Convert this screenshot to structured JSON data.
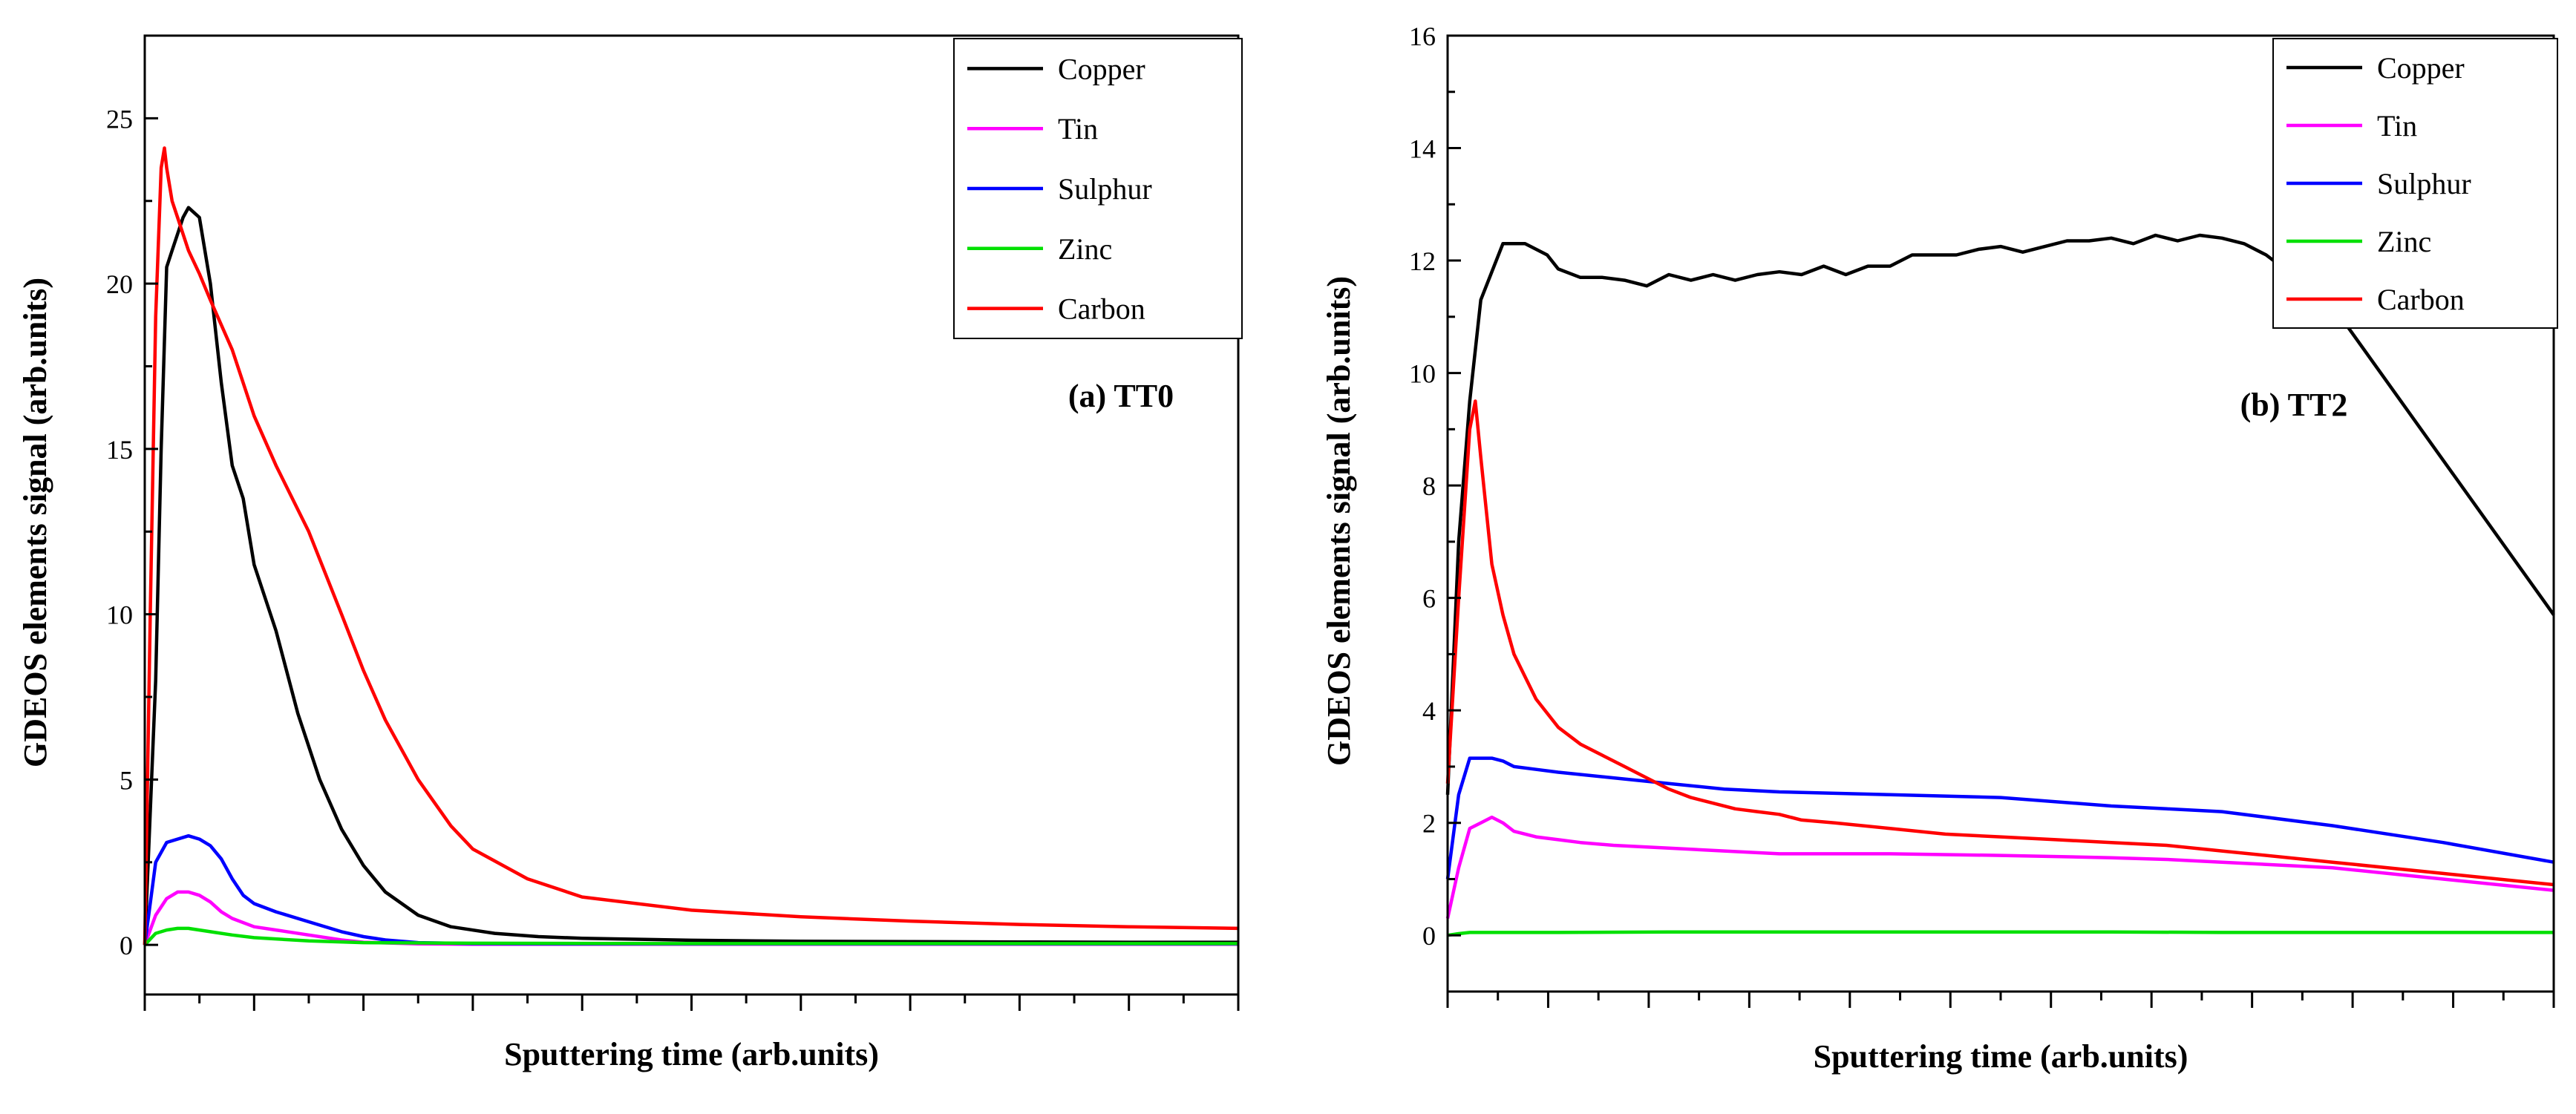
{
  "chart_data": [
    {
      "type": "line",
      "title": "",
      "panel_label": "(a) TT0",
      "xlabel": "Sputtering time (arb.units)",
      "ylabel": "GDEOS elements signal (arb.units)",
      "xlim": [
        0,
        100
      ],
      "ylim": [
        -1.5,
        27.5
      ],
      "yticks": [
        0,
        5,
        10,
        15,
        20,
        25
      ],
      "ytick_labels": [
        "0",
        "5",
        "10",
        "15",
        "20",
        "25"
      ],
      "xtick_count": 20,
      "grid": false,
      "legend_position": "top-right",
      "series": [
        {
          "name": "Copper",
          "color": "#000000",
          "x": [
            0,
            1,
            1.5,
            2,
            2.5,
            3,
            3.5,
            4,
            5,
            6,
            7,
            8,
            9,
            10,
            12,
            14,
            16,
            18,
            20,
            22,
            25,
            28,
            32,
            36,
            40,
            50,
            60,
            70,
            80,
            90,
            100
          ],
          "y": [
            0,
            8,
            15,
            20.5,
            21,
            21.5,
            22,
            22.3,
            22,
            20,
            17,
            14.5,
            13.5,
            11.5,
            9.5,
            7,
            5,
            3.5,
            2.4,
            1.6,
            0.9,
            0.55,
            0.35,
            0.25,
            0.2,
            0.14,
            0.11,
            0.1,
            0.09,
            0.08,
            0.08
          ]
        },
        {
          "name": "Tin",
          "color": "#ff00ff",
          "x": [
            0,
            1,
            2,
            3,
            4,
            5,
            6,
            7,
            8,
            10,
            12,
            15,
            18,
            20,
            25,
            30,
            40,
            60,
            100
          ],
          "y": [
            0,
            0.9,
            1.4,
            1.6,
            1.6,
            1.5,
            1.3,
            1.0,
            0.8,
            0.55,
            0.45,
            0.3,
            0.15,
            0.08,
            0.03,
            0.02,
            0.02,
            0.02,
            0.02
          ]
        },
        {
          "name": "Sulphur",
          "color": "#0000ff",
          "x": [
            0,
            1,
            2,
            3,
            4,
            5,
            6,
            7,
            8,
            9,
            10,
            12,
            15,
            18,
            20,
            22,
            25,
            30,
            40,
            60,
            100
          ],
          "y": [
            0,
            2.5,
            3.1,
            3.2,
            3.3,
            3.2,
            3.0,
            2.6,
            2.0,
            1.5,
            1.25,
            1.0,
            0.7,
            0.4,
            0.25,
            0.15,
            0.07,
            0.04,
            0.03,
            0.03,
            0.03
          ]
        },
        {
          "name": "Zinc",
          "color": "#00e000",
          "x": [
            0,
            1,
            2,
            3,
            4,
            5,
            6,
            8,
            10,
            15,
            20,
            30,
            50,
            100
          ],
          "y": [
            0,
            0.35,
            0.45,
            0.5,
            0.5,
            0.45,
            0.4,
            0.3,
            0.22,
            0.12,
            0.07,
            0.05,
            0.04,
            0.04
          ]
        },
        {
          "name": "Carbon",
          "color": "#ff0000",
          "x": [
            0,
            0.5,
            1,
            1.5,
            1.8,
            2,
            2.5,
            3,
            4,
            5,
            6,
            8,
            10,
            12,
            15,
            18,
            20,
            22,
            25,
            28,
            30,
            35,
            40,
            50,
            60,
            70,
            80,
            90,
            100
          ],
          "y": [
            0,
            10,
            19,
            23.5,
            24.1,
            23.5,
            22.5,
            22,
            21,
            20.3,
            19.5,
            18,
            16,
            14.5,
            12.5,
            10,
            8.3,
            6.8,
            5,
            3.6,
            2.9,
            2.0,
            1.45,
            1.05,
            0.85,
            0.72,
            0.62,
            0.55,
            0.5
          ]
        }
      ]
    },
    {
      "type": "line",
      "title": "",
      "panel_label": "(b) TT2",
      "xlabel": "Sputtering time (arb.units)",
      "ylabel": "GDEOS elements signal (arb.units)",
      "xlim": [
        0,
        100
      ],
      "ylim": [
        -1,
        16
      ],
      "yticks": [
        0,
        2,
        4,
        6,
        8,
        10,
        12,
        14,
        16
      ],
      "ytick_labels": [
        "0",
        "2",
        "4",
        "6",
        "8",
        "10",
        "12",
        "14",
        "16"
      ],
      "xtick_count": 22,
      "grid": false,
      "legend_position": "top-right",
      "series": [
        {
          "name": "Copper",
          "color": "#000000",
          "x": [
            0,
            1,
            2,
            3,
            4,
            5,
            6,
            7,
            8,
            9,
            10,
            12,
            14,
            16,
            18,
            20,
            22,
            24,
            26,
            28,
            30,
            32,
            34,
            36,
            38,
            40,
            42,
            44,
            46,
            48,
            50,
            52,
            54,
            56,
            58,
            60,
            62,
            64,
            66,
            68,
            70,
            72,
            74,
            76,
            78,
            80,
            100
          ],
          "y": [
            2.5,
            7,
            9.5,
            11.3,
            11.8,
            12.3,
            12.3,
            12.3,
            12.2,
            12.1,
            11.85,
            11.7,
            11.7,
            11.65,
            11.55,
            11.75,
            11.65,
            11.75,
            11.65,
            11.75,
            11.8,
            11.75,
            11.9,
            11.75,
            11.9,
            11.9,
            12.1,
            12.1,
            12.1,
            12.2,
            12.25,
            12.15,
            12.25,
            12.35,
            12.35,
            12.4,
            12.3,
            12.45,
            12.35,
            12.45,
            12.4,
            12.3,
            12.1,
            11.8,
            11.5,
            11.2,
            5.7
          ]
        },
        {
          "name": "Tin",
          "color": "#ff00ff",
          "x": [
            0,
            1,
            2,
            3,
            4,
            5,
            6,
            8,
            10,
            12,
            15,
            20,
            25,
            30,
            40,
            50,
            60,
            65,
            70,
            80,
            90,
            100
          ],
          "y": [
            0.3,
            1.2,
            1.9,
            2.0,
            2.1,
            2.0,
            1.85,
            1.75,
            1.7,
            1.65,
            1.6,
            1.55,
            1.5,
            1.45,
            1.45,
            1.42,
            1.38,
            1.35,
            1.3,
            1.2,
            1.0,
            0.8
          ]
        },
        {
          "name": "Sulphur",
          "color": "#0000ff",
          "x": [
            0,
            1,
            2,
            3,
            4,
            5,
            6,
            8,
            10,
            15,
            20,
            25,
            30,
            40,
            50,
            60,
            65,
            70,
            80,
            90,
            100
          ],
          "y": [
            1.0,
            2.5,
            3.15,
            3.15,
            3.15,
            3.1,
            3.0,
            2.95,
            2.9,
            2.8,
            2.7,
            2.6,
            2.55,
            2.5,
            2.45,
            2.3,
            2.25,
            2.2,
            1.95,
            1.65,
            1.3
          ]
        },
        {
          "name": "Zinc",
          "color": "#00e000",
          "x": [
            0,
            1,
            2,
            5,
            10,
            20,
            30,
            40,
            50,
            60,
            70,
            80,
            90,
            100
          ],
          "y": [
            0,
            0.03,
            0.05,
            0.05,
            0.05,
            0.06,
            0.06,
            0.06,
            0.06,
            0.06,
            0.05,
            0.05,
            0.05,
            0.05
          ]
        },
        {
          "name": "Carbon",
          "color": "#ff0000",
          "x": [
            0,
            1,
            2,
            2.5,
            3,
            4,
            5,
            6,
            7,
            8,
            10,
            12,
            14,
            16,
            18,
            20,
            22,
            24,
            26,
            28,
            30,
            32,
            35,
            40,
            45,
            50,
            55,
            60,
            65,
            70,
            80,
            90,
            100
          ],
          "y": [
            2.7,
            6,
            9.0,
            9.5,
            8.5,
            6.6,
            5.7,
            5.0,
            4.6,
            4.2,
            3.7,
            3.4,
            3.2,
            3.0,
            2.8,
            2.6,
            2.45,
            2.35,
            2.25,
            2.2,
            2.15,
            2.05,
            2.0,
            1.9,
            1.8,
            1.75,
            1.7,
            1.65,
            1.6,
            1.5,
            1.3,
            1.1,
            0.9
          ]
        }
      ]
    }
  ]
}
